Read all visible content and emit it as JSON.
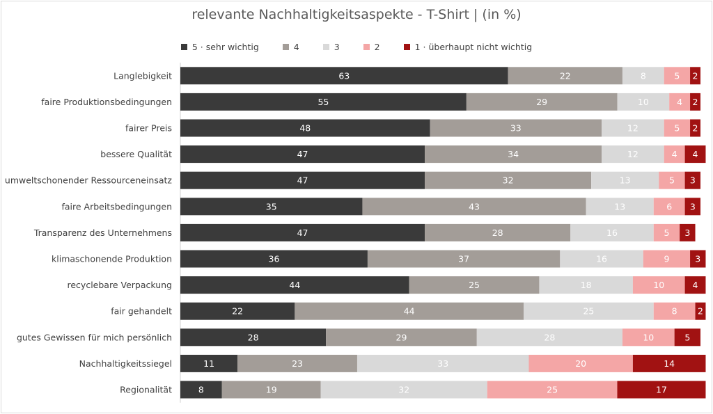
{
  "chart_data": {
    "type": "bar",
    "orientation": "horizontal",
    "stacked": true,
    "title": "relevante Nachhaltigkeitsaspekte - T-Shirt | (in %)",
    "legend_position": "top",
    "xlim": [
      0,
      100
    ],
    "grid": false,
    "categories": [
      "Langlebigkeit",
      "faire Produktionsbedingungen",
      "fairer Preis",
      "bessere Qualität",
      "umweltschonender Ressourceneinsatz",
      "faire Arbeitsbedingungen",
      "Transparenz des Unternehmens",
      "klimaschonende Produktion",
      "recyclebare Verpackung",
      "fair gehandelt",
      "gutes Gewissen für mich persönlich",
      "Nachhaltigkeitssiegel",
      "Regionalität"
    ],
    "series": [
      {
        "name": "5 · sehr wichtig",
        "color": "#3a3a3a",
        "label_color": "#ffffff",
        "values": [
          63,
          55,
          48,
          47,
          47,
          35,
          47,
          36,
          44,
          22,
          28,
          11,
          8
        ]
      },
      {
        "name": "4",
        "color": "#a39d98",
        "label_color": "#ffffff",
        "values": [
          22,
          29,
          33,
          34,
          32,
          43,
          28,
          37,
          25,
          44,
          29,
          23,
          19
        ]
      },
      {
        "name": "3",
        "color": "#d9d9d9",
        "label_color": "#ffffff",
        "values": [
          8,
          10,
          12,
          12,
          13,
          13,
          16,
          16,
          18,
          25,
          28,
          33,
          32
        ]
      },
      {
        "name": "2",
        "color": "#f4a6a6",
        "label_color": "#ffffff",
        "values": [
          5,
          4,
          5,
          4,
          5,
          6,
          5,
          9,
          10,
          8,
          10,
          20,
          25
        ]
      },
      {
        "name": "1 · überhaupt nicht wichtig",
        "color": "#a11212",
        "label_color": "#ffffff",
        "values": [
          2,
          2,
          2,
          4,
          3,
          3,
          3,
          3,
          4,
          2,
          5,
          14,
          17
        ]
      }
    ]
  }
}
